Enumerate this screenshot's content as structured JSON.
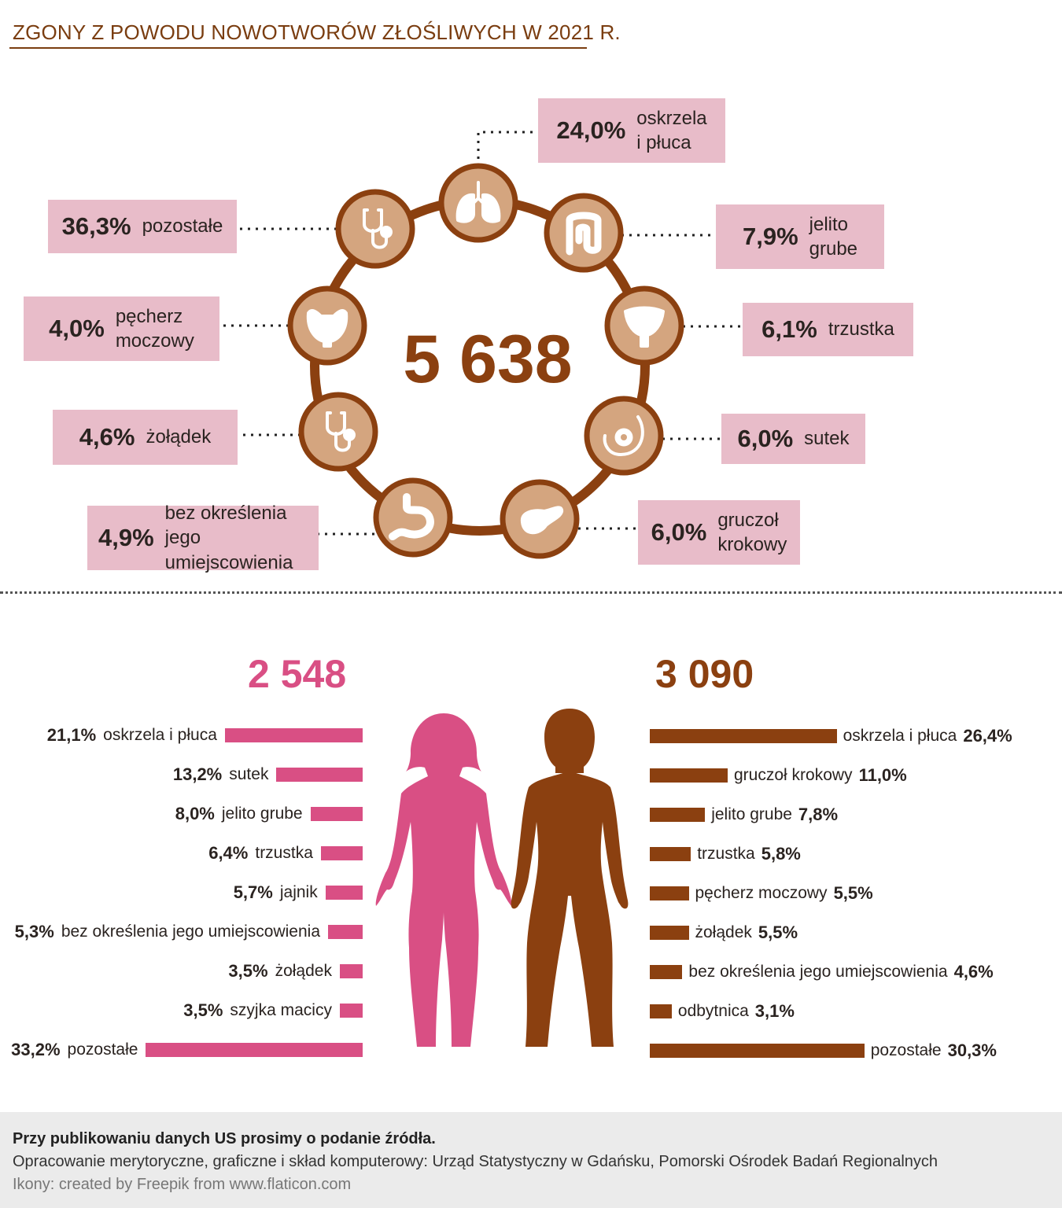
{
  "title": "ZGONY Z POWODU NOWOTWORÓW ZŁOŚLIWYCH W 2021 R.",
  "colors": {
    "brown": "#8b4010",
    "tan": "#d4a57f",
    "pink_label": "#e8bcc9",
    "female": "#d94f84",
    "male": "#8b4010"
  },
  "chart_data": [
    {
      "type": "pie",
      "total": "5 638",
      "categories": [
        "oskrzela\ni płuca",
        "jelito\ngrube",
        "trzustka",
        "sutek",
        "gruczoł\nkrokowy",
        "bez określenia\njego umiejscowienia",
        "żołądek",
        "pęcherz\nmoczowy",
        "pozostałe"
      ],
      "value_labels": [
        "24,0%",
        "7,9%",
        "6,1%",
        "6,0%",
        "6,0%",
        "4,9%",
        "4,6%",
        "4,0%",
        "36,3%"
      ],
      "values": [
        24.0,
        7.9,
        6.1,
        6.0,
        6.0,
        4.9,
        4.6,
        4.0,
        36.3
      ],
      "icons": [
        "lungs-icon",
        "intestine-icon",
        "uterus-icon",
        "breast-icon",
        "pancreas-icon",
        "stomach-icon",
        "stethoscope-icon",
        "bladder-icon",
        "stethoscope-icon"
      ]
    },
    {
      "type": "bar",
      "total": "2 548",
      "categories": [
        "oskrzela i płuca",
        "sutek",
        "jelito grube",
        "trzustka",
        "jajnik",
        "bez określenia jego umiejscowienia",
        "żołądek",
        "szyjka macicy",
        "pozostałe"
      ],
      "value_labels": [
        "21,1%",
        "13,2%",
        "8,0%",
        "6,4%",
        "5,7%",
        "5,3%",
        "3,5%",
        "3,5%",
        "33,2%"
      ],
      "values": [
        21.1,
        13.2,
        8.0,
        6.4,
        5.7,
        5.3,
        3.5,
        3.5,
        33.2
      ]
    },
    {
      "type": "bar",
      "total": "3 090",
      "categories": [
        "oskrzela i płuca",
        "gruczoł krokowy",
        "jelito grube",
        "trzustka",
        "pęcherz moczowy",
        "żołądek",
        "bez określenia jego umiejscowienia",
        "odbytnica",
        "pozostałe"
      ],
      "value_labels": [
        "26,4%",
        "11,0%",
        "7,8%",
        "5,8%",
        "5,5%",
        "5,5%",
        "4,6%",
        "3,1%",
        "30,3%"
      ],
      "values": [
        26.4,
        11.0,
        7.8,
        5.8,
        5.5,
        5.5,
        4.6,
        3.1,
        30.3
      ]
    }
  ],
  "footer": {
    "line1": "Przy publikowaniu danych US prosimy o podanie źródła.",
    "line2": "Opracowanie merytoryczne, graficzne i skład komputerowy: Urząd Statystyczny w Gdańsku, Pomorski Ośrodek Badań Regionalnych",
    "line3": "Ikony: created by Freepik from www.flaticon.com"
  }
}
